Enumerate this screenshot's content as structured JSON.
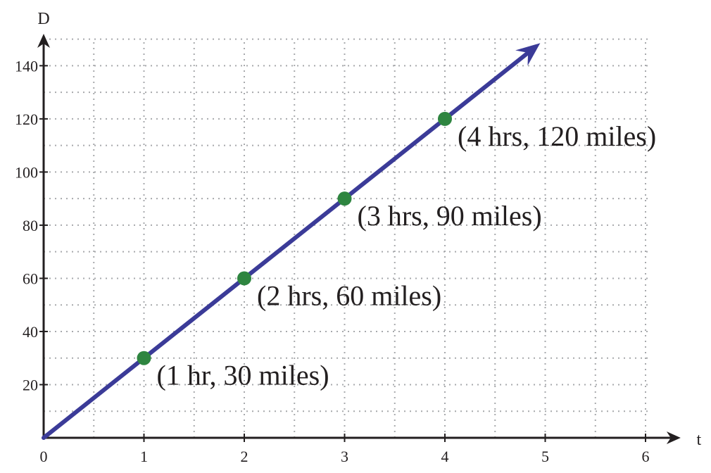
{
  "chart_data": {
    "type": "line",
    "xlabel": "t",
    "ylabel": "D",
    "xlim": [
      0,
      6.35
    ],
    "ylim": [
      0,
      152
    ],
    "grid": true,
    "x_ticks": [
      0,
      1,
      2,
      3,
      4,
      5,
      6
    ],
    "y_ticks": [
      20,
      40,
      60,
      80,
      100,
      120,
      140
    ],
    "grid_x": [
      0.5,
      1,
      1.5,
      2,
      2.5,
      3,
      3.5,
      4,
      4.5,
      5,
      5.5,
      6
    ],
    "grid_y": [
      10,
      20,
      30,
      40,
      50,
      60,
      70,
      80,
      90,
      100,
      110,
      120,
      130,
      140,
      150
    ],
    "colors": {
      "line": "#3b3b98",
      "point": "#2e8540",
      "axis": "#231f20"
    },
    "line": {
      "x_start": 0,
      "x_end": 4.95,
      "slope": 30
    },
    "points": [
      {
        "x": 1,
        "y": 30,
        "label": "(1 hr, 30 miles)"
      },
      {
        "x": 2,
        "y": 60,
        "label": "(2 hrs, 60 miles)"
      },
      {
        "x": 3,
        "y": 90,
        "label": "(3 hrs, 90 miles)"
      },
      {
        "x": 4,
        "y": 120,
        "label": "(4 hrs, 120 miles)"
      }
    ]
  }
}
